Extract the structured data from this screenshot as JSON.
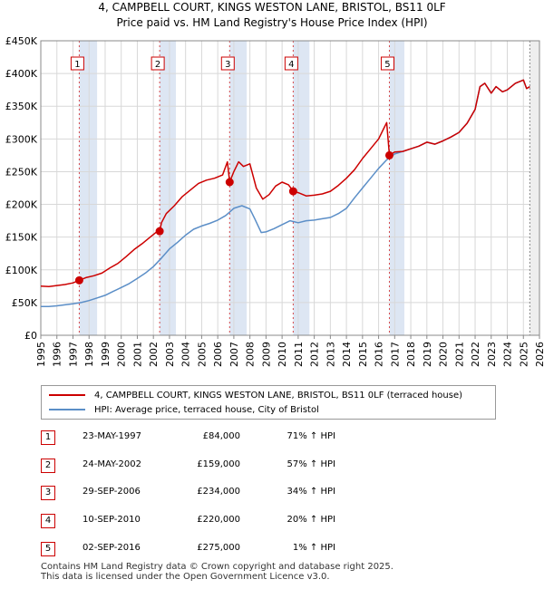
{
  "chart_data": {
    "type": "line",
    "title": "4, CAMPBELL COURT, KINGS WESTON LANE, BRISTOL, BS11 0LF",
    "subtitle": "Price paid vs. HM Land Registry's House Price Index (HPI)",
    "xlim": [
      1995,
      2026
    ],
    "ylim": [
      0,
      450000
    ],
    "yticks": [
      {
        "value": 0,
        "label": "£0"
      },
      {
        "value": 50000,
        "label": "£50K"
      },
      {
        "value": 100000,
        "label": "£100K"
      },
      {
        "value": 150000,
        "label": "£150K"
      },
      {
        "value": 200000,
        "label": "£200K"
      },
      {
        "value": 250000,
        "label": "£250K"
      },
      {
        "value": 300000,
        "label": "£300K"
      },
      {
        "value": 350000,
        "label": "£350K"
      },
      {
        "value": 400000,
        "label": "£400K"
      },
      {
        "value": 450000,
        "label": "£450K"
      }
    ],
    "xticks": [
      "1995",
      "1996",
      "1997",
      "1998",
      "1999",
      "2000",
      "2001",
      "2002",
      "2003",
      "2004",
      "2005",
      "2006",
      "2007",
      "2008",
      "2009",
      "2010",
      "2011",
      "2012",
      "2013",
      "2014",
      "2015",
      "2016",
      "2017",
      "2018",
      "2019",
      "2020",
      "2021",
      "2022",
      "2023",
      "2024",
      "2025",
      "2026"
    ],
    "series": [
      {
        "name": "4, CAMPBELL COURT, KINGS WESTON LANE, BRISTOL, BS11 0LF (terraced house)",
        "color": "#cc0000",
        "x": [
          1995.0,
          1995.5,
          1996.0,
          1996.5,
          1997.0,
          1997.39,
          1997.8,
          1998.3,
          1998.8,
          1999.3,
          1999.8,
          2000.3,
          2000.8,
          2001.3,
          2001.8,
          2002.2,
          2002.39,
          2002.5,
          2002.8,
          2003.3,
          2003.8,
          2004.3,
          2004.8,
          2005.3,
          2005.8,
          2006.3,
          2006.6,
          2006.74,
          2007.0,
          2007.3,
          2007.6,
          2008.0,
          2008.4,
          2008.8,
          2009.2,
          2009.6,
          2010.0,
          2010.4,
          2010.69,
          2011.0,
          2011.5,
          2012.0,
          2012.5,
          2013.0,
          2013.5,
          2014.0,
          2014.5,
          2015.0,
          2015.5,
          2016.0,
          2016.3,
          2016.5,
          2016.67,
          2017.0,
          2017.5,
          2018.0,
          2018.5,
          2019.0,
          2019.5,
          2020.0,
          2020.5,
          2021.0,
          2021.5,
          2022.0,
          2022.3,
          2022.6,
          2023.0,
          2023.3,
          2023.7,
          2024.0,
          2024.5,
          2025.0,
          2025.2,
          2025.4
        ],
        "y": [
          75000,
          74500,
          76000,
          77500,
          80000,
          84000,
          88000,
          91000,
          95000,
          103000,
          110000,
          120000,
          131000,
          140000,
          150000,
          158000,
          159000,
          172000,
          186000,
          198000,
          212000,
          222000,
          232000,
          237000,
          240000,
          245000,
          265000,
          234000,
          250000,
          265000,
          258000,
          262000,
          225000,
          208000,
          215000,
          228000,
          234000,
          230000,
          220000,
          218000,
          213000,
          214000,
          216000,
          220000,
          229000,
          240000,
          253000,
          270000,
          285000,
          300000,
          315000,
          325000,
          275000,
          280000,
          281000,
          285000,
          289000,
          295000,
          292000,
          297000,
          303000,
          310000,
          324000,
          345000,
          380000,
          385000,
          370000,
          380000,
          372000,
          375000,
          385000,
          390000,
          377000,
          380000
        ]
      },
      {
        "name": "HPI: Average price, terraced house, City of Bristol",
        "color": "#5b8ec7",
        "x": [
          1995.0,
          1995.5,
          1996.0,
          1996.5,
          1997.0,
          1997.5,
          1998.0,
          1998.5,
          1999.0,
          1999.5,
          2000.0,
          2000.5,
          2001.0,
          2001.5,
          2002.0,
          2002.5,
          2003.0,
          2003.5,
          2004.0,
          2004.5,
          2005.0,
          2005.5,
          2006.0,
          2006.5,
          2007.0,
          2007.5,
          2008.0,
          2008.3,
          2008.7,
          2009.0,
          2009.5,
          2010.0,
          2010.5,
          2011.0,
          2011.5,
          2012.0,
          2012.5,
          2013.0,
          2013.5,
          2014.0,
          2014.5,
          2015.0,
          2015.5,
          2016.0,
          2016.5,
          2017.0,
          2017.5,
          2018.0,
          2018.5,
          2019.0,
          2019.5,
          2020.0,
          2020.5,
          2021.0,
          2021.5,
          2022.0,
          2022.3,
          2022.6,
          2023.0,
          2023.3,
          2023.7,
          2024.0,
          2024.5,
          2025.0,
          2025.2,
          2025.4
        ],
        "y": [
          44000,
          44000,
          45000,
          46500,
          48000,
          50000,
          53000,
          57000,
          61000,
          67000,
          73000,
          79000,
          87000,
          95000,
          105000,
          118000,
          132000,
          142000,
          153000,
          162000,
          167000,
          171000,
          176000,
          183000,
          194000,
          198000,
          193000,
          178000,
          157000,
          158000,
          163000,
          169000,
          175000,
          172000,
          175000,
          176000,
          178000,
          180000,
          186000,
          194000,
          210000,
          225000,
          240000,
          255000,
          268000,
          277000,
          281000,
          285000,
          289000,
          295000,
          292000,
          297000,
          303000,
          310000,
          324000,
          345000,
          380000,
          385000,
          370000,
          380000,
          372000,
          375000,
          385000,
          390000,
          377000,
          380000
        ]
      }
    ],
    "sales": [
      {
        "num": "1",
        "x": 1997.39,
        "y": 84000,
        "date": "23-MAY-1997",
        "price": "£84,000",
        "hpi": "71% ↑ HPI"
      },
      {
        "num": "2",
        "x": 2002.39,
        "y": 159000,
        "date": "24-MAY-2002",
        "price": "£159,000",
        "hpi": "57% ↑ HPI"
      },
      {
        "num": "3",
        "x": 2006.74,
        "y": 234000,
        "date": "29-SEP-2006",
        "price": "£234,000",
        "hpi": "34% ↑ HPI"
      },
      {
        "num": "4",
        "x": 2010.69,
        "y": 220000,
        "date": "10-SEP-2010",
        "price": "£220,000",
        "hpi": "20% ↑ HPI"
      },
      {
        "num": "5",
        "x": 2016.67,
        "y": 275000,
        "date": "02-SEP-2016",
        "price": "£275,000",
        "hpi": "1% ↑ HPI"
      }
    ],
    "shaded_ranges": [
      [
        1997.39,
        1998.5
      ],
      [
        2002.39,
        2003.4
      ],
      [
        2006.74,
        2007.8
      ],
      [
        2010.69,
        2011.7
      ],
      [
        2016.67,
        2017.6
      ]
    ],
    "forecast_start": 2025.4
  },
  "legend": {
    "property_label": "4, CAMPBELL COURT, KINGS WESTON LANE, BRISTOL, BS11 0LF (terraced house)",
    "hpi_label": "HPI: Average price, terraced house, City of Bristol"
  },
  "footer": {
    "line1": "Contains HM Land Registry data © Crown copyright and database right 2025.",
    "line2": "This data is licensed under the Open Government Licence v3.0."
  },
  "colors": {
    "property": "#cc0000",
    "hpi": "#5b8ec7",
    "shade": "#dde6f3"
  }
}
